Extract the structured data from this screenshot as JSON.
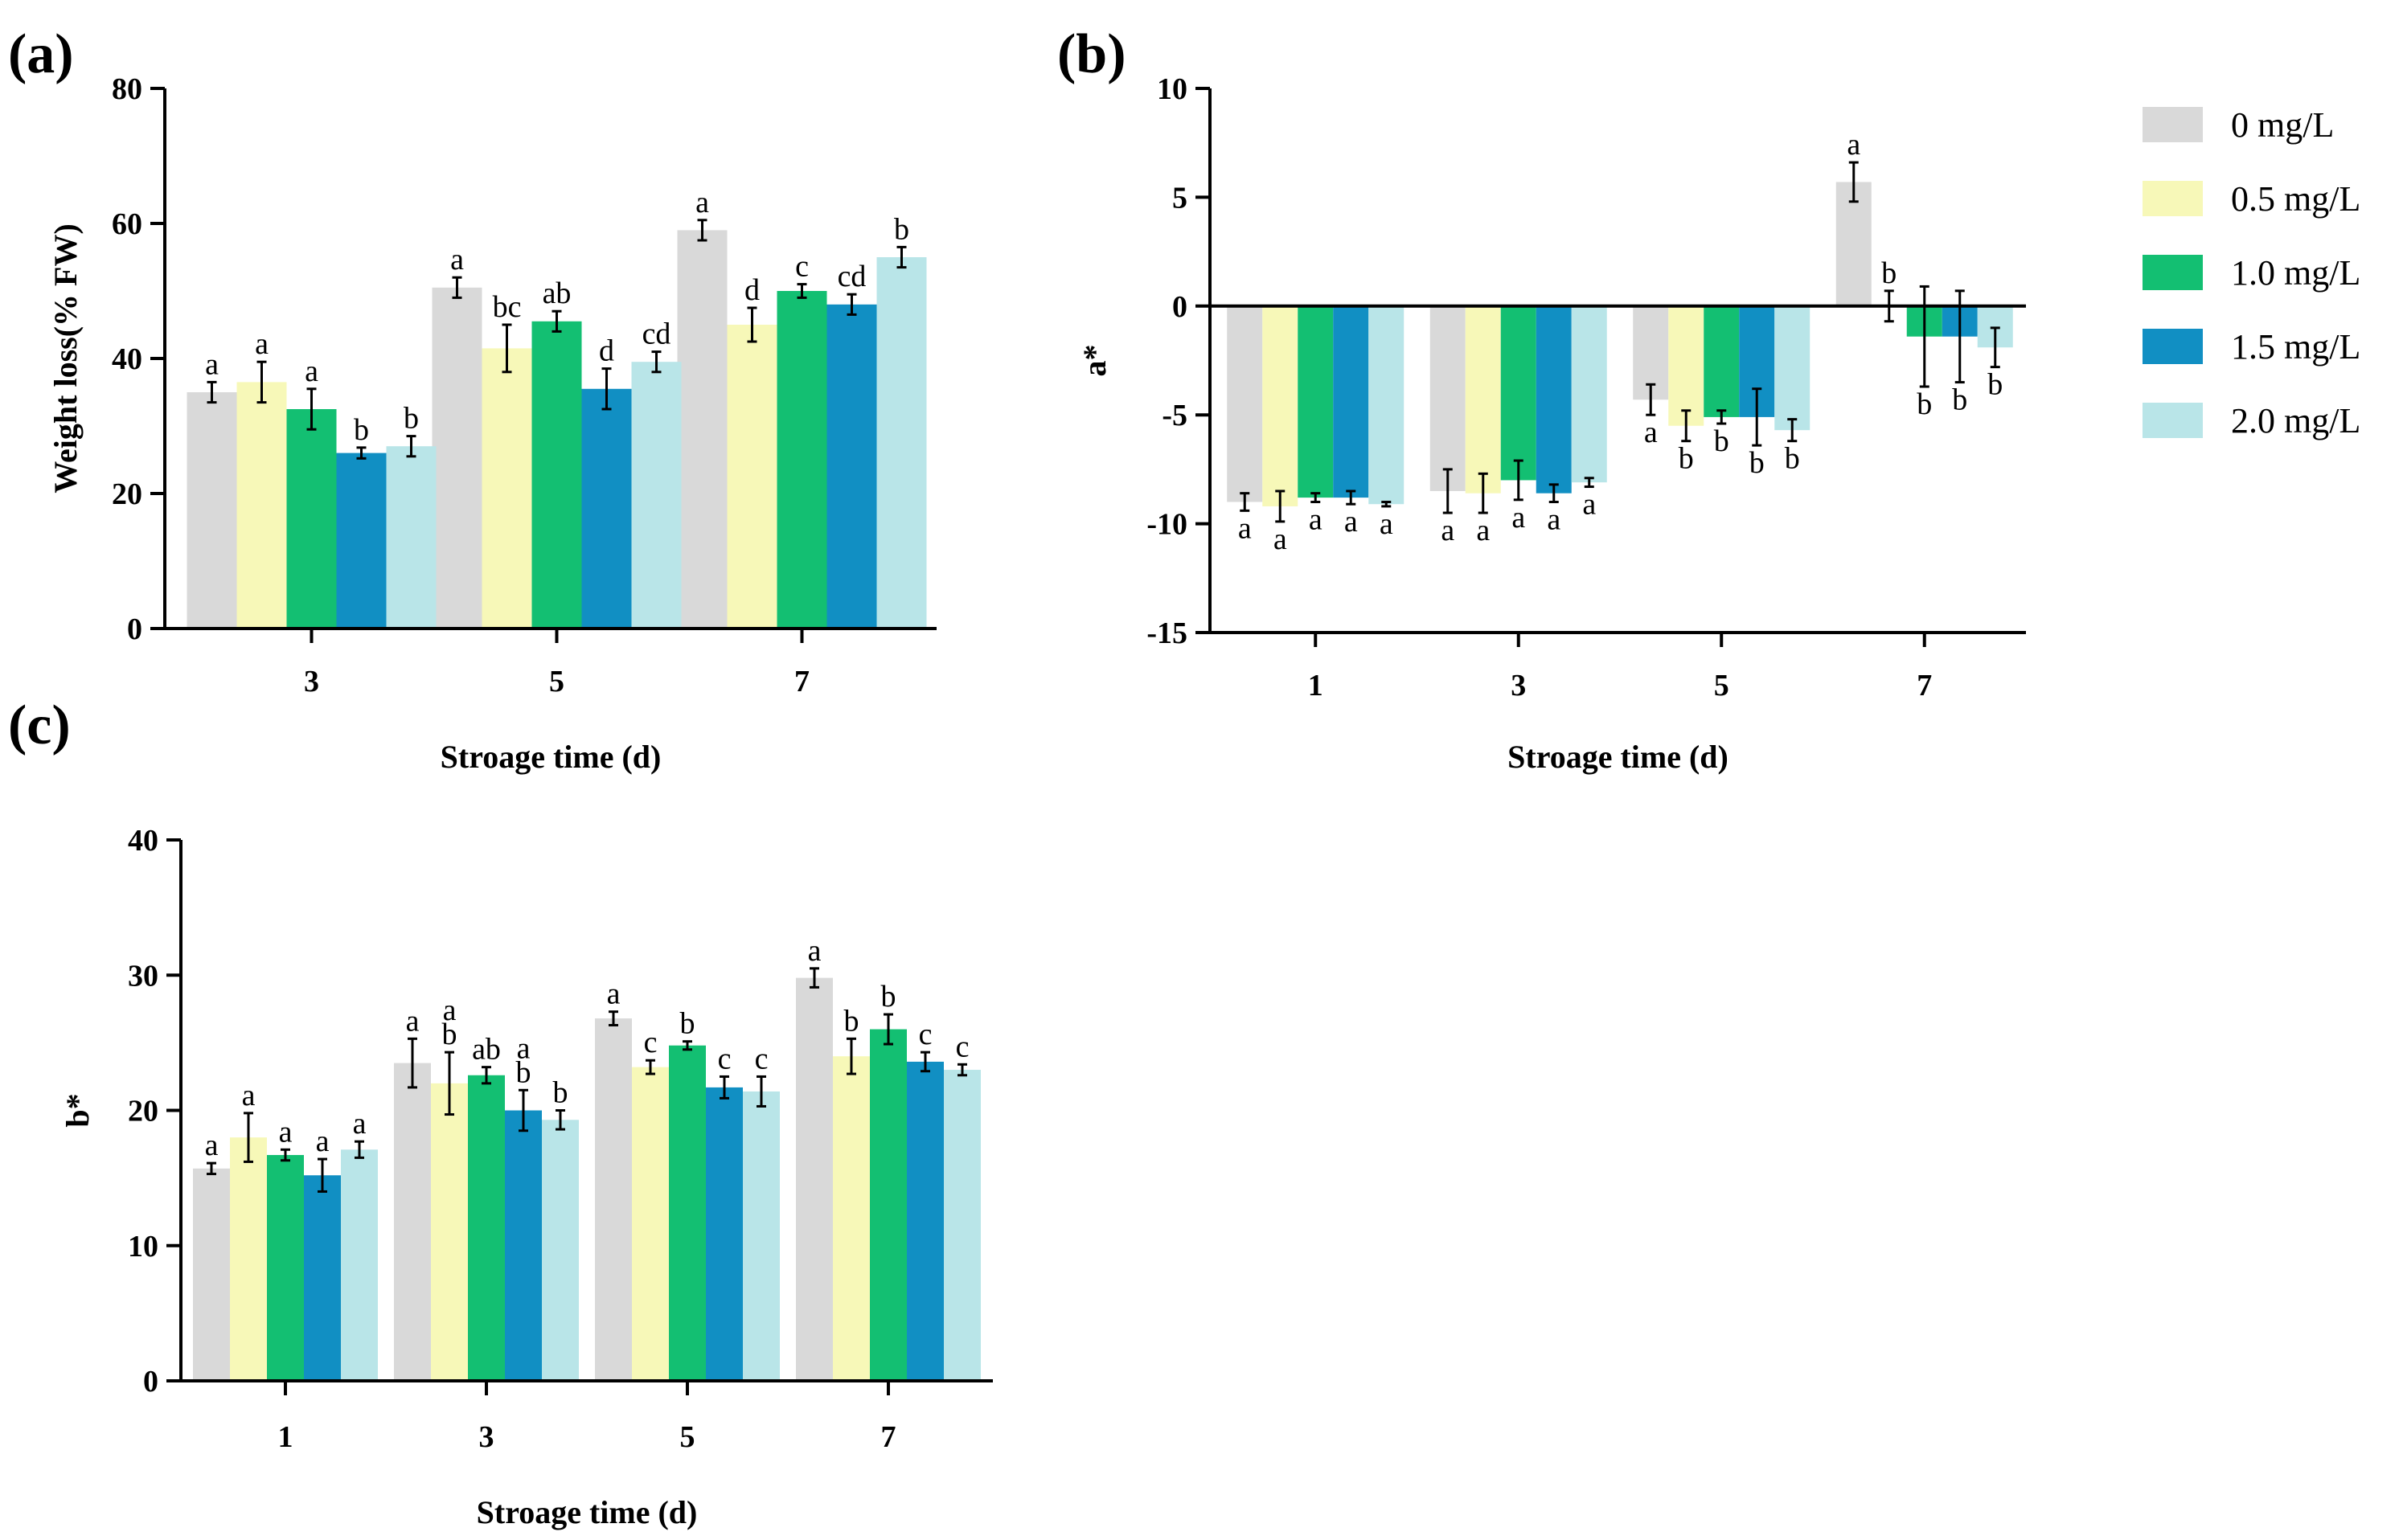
{
  "legend": {
    "items": [
      {
        "label": "0 mg/L",
        "color": "#d9d9d9"
      },
      {
        "label": "0.5 mg/L",
        "color": "#f7f8b8"
      },
      {
        "label": "1.0 mg/L",
        "color": "#13bf72"
      },
      {
        "label": "1.5 mg/L",
        "color": "#118fc3"
      },
      {
        "label": "2.0 mg/L",
        "color": "#b9e5e8"
      }
    ]
  },
  "chart_data": [
    {
      "panel": "(a)",
      "type": "bar",
      "title": "",
      "xlabel": "Stroage time (d)",
      "ylabel": "Weight loss(% FW)",
      "ylim": [
        0,
        80
      ],
      "yticks": [
        0,
        20,
        40,
        60,
        80
      ],
      "categories": [
        "3",
        "5",
        "7"
      ],
      "series": [
        {
          "name": "0 mg/L",
          "values": [
            35,
            50.5,
            59
          ],
          "errors": [
            1.5,
            1.5,
            1.5
          ],
          "letters": [
            "a",
            "a",
            "a"
          ]
        },
        {
          "name": "0.5 mg/L",
          "values": [
            36.5,
            41.5,
            45
          ],
          "errors": [
            3,
            3.5,
            2.5
          ],
          "letters": [
            "a",
            "bc",
            "d"
          ]
        },
        {
          "name": "1.0 mg/L",
          "values": [
            32.5,
            45.5,
            50
          ],
          "errors": [
            3,
            1.5,
            1
          ],
          "letters": [
            "a",
            "ab",
            "c"
          ]
        },
        {
          "name": "1.5 mg/L",
          "values": [
            26,
            35.5,
            48
          ],
          "errors": [
            0.8,
            3,
            1.5
          ],
          "letters": [
            "b",
            "d",
            "cd"
          ]
        },
        {
          "name": "2.0 mg/L",
          "values": [
            27,
            39.5,
            55
          ],
          "errors": [
            1.5,
            1.5,
            1.5
          ],
          "letters": [
            "b",
            "cd",
            "b"
          ]
        }
      ]
    },
    {
      "panel": "(b)",
      "type": "bar",
      "title": "",
      "xlabel": "Stroage time (d)",
      "ylabel": "a*",
      "ylim": [
        -15,
        10
      ],
      "yticks": [
        -15,
        -10,
        -5,
        0,
        5,
        10
      ],
      "categories": [
        "1",
        "3",
        "5",
        "7"
      ],
      "series": [
        {
          "name": "0 mg/L",
          "values": [
            -9,
            -8.5,
            -4.3,
            5.7
          ],
          "errors": [
            0.4,
            1,
            0.7,
            0.9
          ],
          "letters": [
            "a",
            "a",
            "a",
            "a"
          ]
        },
        {
          "name": "0.5 mg/L",
          "values": [
            -9.2,
            -8.6,
            -5.5,
            0
          ],
          "errors": [
            0.7,
            0.9,
            0.7,
            0.7
          ],
          "letters": [
            "a",
            "a",
            "b",
            "b"
          ]
        },
        {
          "name": "1.0 mg/L",
          "values": [
            -8.8,
            -8,
            -5.1,
            -1.4
          ],
          "errors": [
            0.2,
            0.9,
            0.3,
            2.3
          ],
          "letters": [
            "a",
            "a",
            "b",
            "b"
          ]
        },
        {
          "name": "1.5 mg/L",
          "values": [
            -8.8,
            -8.6,
            -5.1,
            -1.4
          ],
          "errors": [
            0.3,
            0.4,
            1.3,
            2.1
          ],
          "letters": [
            "a",
            "a",
            "b",
            "b"
          ]
        },
        {
          "name": "2.0 mg/L",
          "values": [
            -9.1,
            -8.1,
            -5.7,
            -1.9
          ],
          "errors": [
            0.1,
            0.2,
            0.5,
            0.9
          ],
          "letters": [
            "a",
            "a",
            "b",
            "b"
          ]
        }
      ]
    },
    {
      "panel": "(c)",
      "type": "bar",
      "title": "",
      "xlabel": "Stroage time (d)",
      "ylabel": "b*",
      "ylim": [
        0,
        40
      ],
      "yticks": [
        0,
        10,
        20,
        30,
        40
      ],
      "categories": [
        "1",
        "3",
        "5",
        "7"
      ],
      "series": [
        {
          "name": "0 mg/L",
          "values": [
            15.7,
            23.5,
            26.8,
            29.8
          ],
          "errors": [
            0.4,
            1.8,
            0.5,
            0.7
          ],
          "letters": [
            "a",
            "a",
            "a",
            "a"
          ]
        },
        {
          "name": "0.5 mg/L",
          "values": [
            18,
            22,
            23.2,
            24
          ],
          "errors": [
            1.8,
            2.3,
            0.5,
            1.3
          ],
          "letters": [
            "a",
            "a\nb",
            "c",
            "b"
          ]
        },
        {
          "name": "1.0 mg/L",
          "values": [
            16.7,
            22.6,
            24.8,
            26
          ],
          "errors": [
            0.4,
            0.6,
            0.3,
            1.1
          ],
          "letters": [
            "a",
            "ab",
            "b",
            "b"
          ]
        },
        {
          "name": "1.5 mg/L",
          "values": [
            15.2,
            20,
            21.7,
            23.6
          ],
          "errors": [
            1.2,
            1.5,
            0.8,
            0.7
          ],
          "letters": [
            "a",
            "a\nb",
            "c",
            "c"
          ]
        },
        {
          "name": "2.0 mg/L",
          "values": [
            17.1,
            19.3,
            21.4,
            23
          ],
          "errors": [
            0.6,
            0.7,
            1.1,
            0.4
          ],
          "letters": [
            "a",
            "b",
            "c",
            "c"
          ]
        }
      ]
    }
  ]
}
